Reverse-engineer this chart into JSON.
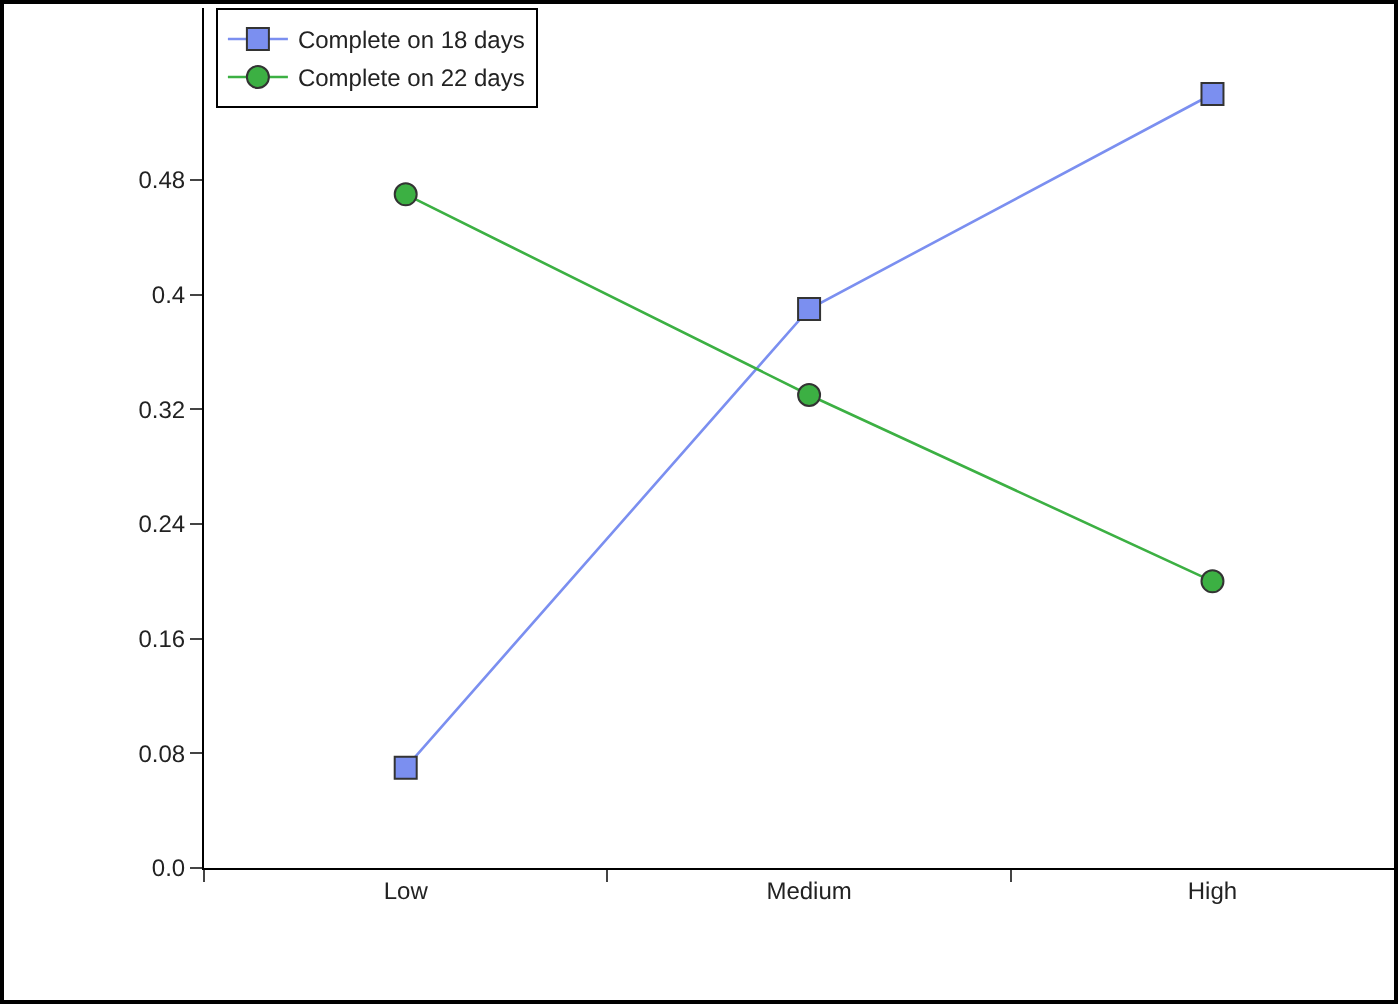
{
  "chart_data": {
    "type": "line",
    "categories": [
      "Low",
      "Medium",
      "High"
    ],
    "series": [
      {
        "name": "Complete on 18 days",
        "color": "#7b8ff0",
        "marker": "square",
        "values": [
          0.07,
          0.39,
          0.54
        ]
      },
      {
        "name": "Complete on 22 days",
        "color": "#3cb043",
        "marker": "circle",
        "values": [
          0.47,
          0.33,
          0.2
        ]
      }
    ],
    "ylim": [
      0,
      0.6
    ],
    "yticks": [
      {
        "value": 0,
        "label": "0.0"
      },
      0.08,
      0.16,
      0.24,
      0.32,
      0.4,
      0.48
    ],
    "grid": false,
    "legend": "top left",
    "line_style": "solid"
  }
}
